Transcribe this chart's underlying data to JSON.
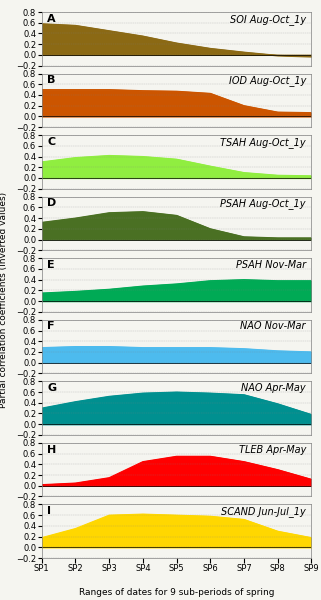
{
  "subplots": [
    {
      "label": "A",
      "title": "SOI Aug-Oct_1y",
      "color": "#8B6914",
      "values": [
        0.58,
        0.55,
        0.45,
        0.35,
        0.22,
        0.12,
        0.05,
        -0.01,
        -0.03
      ],
      "ylim": [
        -0.2,
        0.8
      ]
    },
    {
      "label": "B",
      "title": "IOD Aug-Oct_1y",
      "color": "#CC5500",
      "values": [
        0.5,
        0.5,
        0.5,
        0.48,
        0.47,
        0.43,
        0.2,
        0.08,
        0.07
      ],
      "ylim": [
        -0.2,
        0.8
      ]
    },
    {
      "label": "C",
      "title": "TSAH Aug-Oct_1y",
      "color": "#90EE40",
      "values": [
        0.3,
        0.38,
        0.42,
        0.4,
        0.35,
        0.22,
        0.1,
        0.05,
        0.04
      ],
      "ylim": [
        -0.2,
        0.8
      ]
    },
    {
      "label": "D",
      "title": "PSAH Aug-Oct_1y",
      "color": "#4A7023",
      "values": [
        0.32,
        0.4,
        0.5,
        0.52,
        0.45,
        0.2,
        0.05,
        0.03,
        0.03
      ],
      "ylim": [
        -0.2,
        0.8
      ]
    },
    {
      "label": "E",
      "title": "PSAH Nov-Mar",
      "color": "#00AA55",
      "values": [
        0.15,
        0.18,
        0.22,
        0.28,
        0.32,
        0.38,
        0.4,
        0.38,
        0.38
      ],
      "ylim": [
        -0.2,
        0.8
      ]
    },
    {
      "label": "F",
      "title": "NAO Nov-Mar",
      "color": "#4DBBEE",
      "values": [
        0.28,
        0.3,
        0.3,
        0.28,
        0.28,
        0.28,
        0.26,
        0.22,
        0.2
      ],
      "ylim": [
        -0.2,
        0.8
      ]
    },
    {
      "label": "G",
      "title": "NAO Apr-May",
      "color": "#009090",
      "values": [
        0.3,
        0.42,
        0.52,
        0.58,
        0.6,
        0.58,
        0.55,
        0.38,
        0.18
      ],
      "ylim": [
        -0.2,
        0.8
      ]
    },
    {
      "label": "H",
      "title": "TLEB Apr-May",
      "color": "#FF0000",
      "values": [
        0.02,
        0.05,
        0.15,
        0.45,
        0.55,
        0.55,
        0.45,
        0.3,
        0.12
      ],
      "ylim": [
        -0.2,
        0.8
      ]
    },
    {
      "label": "I",
      "title": "SCAND Jun-Jul_1y",
      "color": "#FFD700",
      "values": [
        0.18,
        0.35,
        0.6,
        0.62,
        0.6,
        0.58,
        0.52,
        0.3,
        0.18
      ],
      "ylim": [
        -0.2,
        0.8
      ]
    }
  ],
  "x_labels": [
    "SP1",
    "SP2",
    "SP3",
    "SP4",
    "SP5",
    "SP6",
    "SP7",
    "SP8",
    "SP9"
  ],
  "ylabel": "Partial correlation coefficients (inverted values)",
  "xlabel": "Ranges of dates for 9 sub-periods of spring",
  "yticks": [
    -0.2,
    0.0,
    0.2,
    0.4,
    0.6,
    0.8
  ],
  "background_color": "#f5f5f0",
  "title_fontsize": 7,
  "label_fontsize": 7,
  "tick_fontsize": 6,
  "hspace": 0.15
}
